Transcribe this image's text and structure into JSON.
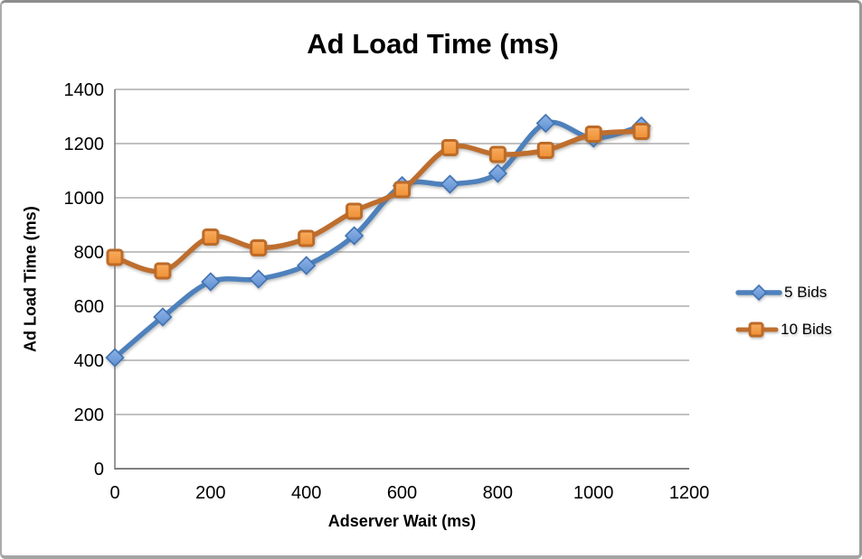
{
  "window": {
    "background": "#ffffff",
    "border_color": "#9b9b9b"
  },
  "chart_data": {
    "type": "line",
    "title": "Ad Load Time (ms)",
    "xlabel": "Adserver Wait (ms)",
    "ylabel": "Ad Load Time (ms)",
    "x": [
      0,
      100,
      200,
      300,
      400,
      500,
      600,
      700,
      800,
      900,
      1000,
      1100
    ],
    "series": [
      {
        "name": "5 Bids",
        "marker": "diamond",
        "line_color": "#4E81BC",
        "marker_fill_top": "#8FB4E8",
        "marker_fill_bottom": "#5E8FD0",
        "marker_stroke": "#4273B2",
        "values": [
          410,
          560,
          690,
          700,
          750,
          860,
          1045,
          1050,
          1090,
          1275,
          1220,
          1265
        ]
      },
      {
        "name": "10 Bids",
        "marker": "square",
        "line_color": "#BE6E2E",
        "marker_fill_top": "#F8AC60",
        "marker_fill_bottom": "#EE8F33",
        "marker_stroke": "#BC6B28",
        "values": [
          780,
          730,
          855,
          815,
          850,
          950,
          1030,
          1185,
          1160,
          1175,
          1235,
          1245
        ]
      }
    ],
    "xlim": [
      0,
      1200
    ],
    "ylim": [
      0,
      1400
    ],
    "x_ticks": [
      0,
      200,
      400,
      600,
      800,
      1000,
      1200
    ],
    "y_ticks": [
      0,
      200,
      400,
      600,
      800,
      1000,
      1200,
      1400
    ],
    "grid": "horizontal",
    "smooth": true,
    "legend_position": "right",
    "gridline_color": "#9c9c9c",
    "axis_color": "#7f7f7f",
    "text_color": "#000000"
  }
}
